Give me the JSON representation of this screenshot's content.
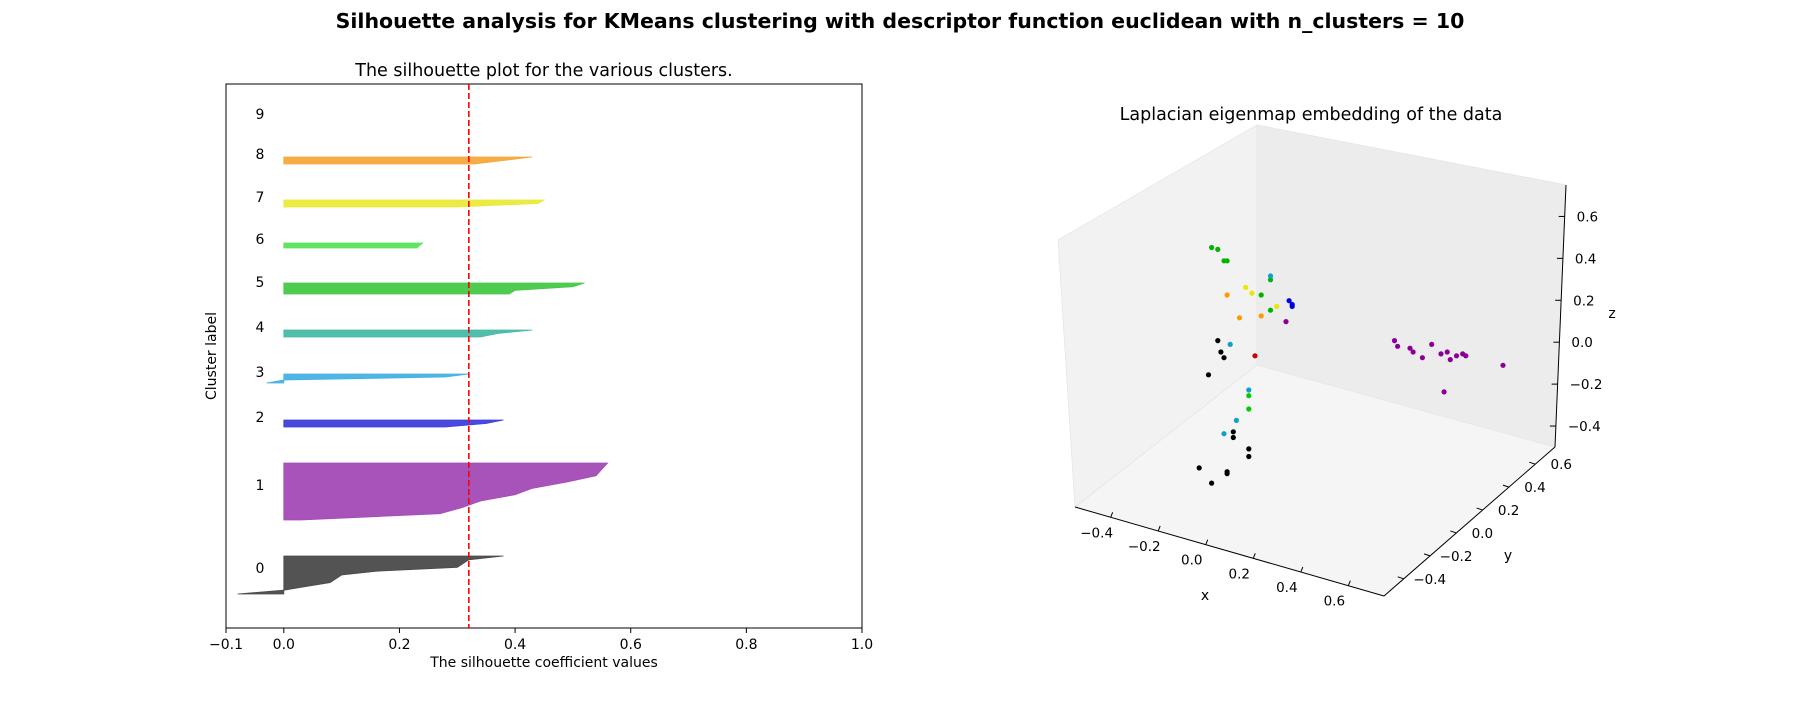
{
  "figure": {
    "suptitle": "Silhouette analysis for KMeans clustering with descriptor function euclidean with n_clusters = 10"
  },
  "chart_data": [
    {
      "type": "area",
      "title": "The silhouette plot for the various clusters.",
      "xlabel": "The silhouette coefficient values",
      "ylabel": "Cluster label",
      "xlim": [
        -0.1,
        1.0
      ],
      "xticks": [
        -0.1,
        0.0,
        0.2,
        0.4,
        0.6,
        0.8,
        1.0
      ],
      "xtick_labels": [
        "−0.1",
        "0.0",
        "0.2",
        "0.4",
        "0.6",
        "0.8",
        "1.0"
      ],
      "average_silhouette": 0.32,
      "grid": false,
      "clusters": [
        {
          "label": "0",
          "color": "#4a4a4a",
          "values": [
            0.38,
            0.32,
            0.31,
            0.3,
            0.16,
            0.1,
            0.09,
            0.08,
            0.04,
            0.0,
            -0.08
          ]
        },
        {
          "label": "1",
          "color": "#a34ab6",
          "values": [
            0.56,
            0.55,
            0.54,
            0.49,
            0.43,
            0.4,
            0.34,
            0.31,
            0.27,
            0.03
          ]
        },
        {
          "label": "2",
          "color": "#3f3fdc",
          "values": [
            0.38,
            0.35,
            0.28
          ]
        },
        {
          "label": "3",
          "color": "#44b1e3",
          "values": [
            0.32,
            0.28,
            0.0,
            -0.03
          ]
        },
        {
          "label": "4",
          "color": "#47bba6",
          "values": [
            0.43,
            0.37,
            0.34
          ]
        },
        {
          "label": "5",
          "color": "#46c846",
          "values": [
            0.52,
            0.5,
            0.4,
            0.39
          ]
        },
        {
          "label": "6",
          "color": "#58e458",
          "values": [
            0.24,
            0.23
          ]
        },
        {
          "label": "7",
          "color": "#eaea3a",
          "values": [
            0.45,
            0.44,
            0.3
          ]
        },
        {
          "label": "8",
          "color": "#f5a83c",
          "values": [
            0.43,
            0.38,
            0.33
          ]
        },
        {
          "label": "9",
          "color": "#cccccc",
          "values": []
        }
      ]
    },
    {
      "type": "scatter",
      "title": "Laplacian eigenmap embedding of the data",
      "xlabel": "x",
      "ylabel": "y",
      "zlabel": "z",
      "xtick_labels": [
        "−0.4",
        "−0.2",
        "0.0",
        "0.2",
        "0.4",
        "0.6"
      ],
      "ytick_labels": [
        "−0.4",
        "−0.2",
        "0.0",
        "0.2",
        "0.4",
        "0.6"
      ],
      "ztick_labels": [
        "−0.4",
        "−0.2",
        "0.0",
        "0.2",
        "0.4",
        "0.6"
      ],
      "grid": false,
      "points": [
        {
          "x": -0.14,
          "y": 0.3,
          "z": 0.55,
          "color": "#00b400"
        },
        {
          "x": -0.12,
          "y": 0.3,
          "z": 0.54,
          "color": "#00b400"
        },
        {
          "x": -0.1,
          "y": 0.3,
          "z": 0.48,
          "color": "#00b400"
        },
        {
          "x": -0.09,
          "y": 0.3,
          "z": 0.48,
          "color": "#00b400"
        },
        {
          "x": 0.05,
          "y": 0.3,
          "z": 0.38,
          "color": "#00b400"
        },
        {
          "x": 0.02,
          "y": 0.3,
          "z": 0.3,
          "color": "#00b400"
        },
        {
          "x": 0.05,
          "y": 0.3,
          "z": 0.22,
          "color": "#00b400"
        },
        {
          "x": 0.05,
          "y": 0.3,
          "z": 0.4,
          "color": "#10a0c8"
        },
        {
          "x": -0.03,
          "y": 0.3,
          "z": 0.34,
          "color": "#e8e800"
        },
        {
          "x": -0.01,
          "y": 0.3,
          "z": 0.31,
          "color": "#e8e800"
        },
        {
          "x": 0.07,
          "y": 0.3,
          "z": 0.24,
          "color": "#e8e800"
        },
        {
          "x": -0.09,
          "y": 0.3,
          "z": 0.3,
          "color": "#ff9900"
        },
        {
          "x": -0.05,
          "y": 0.3,
          "z": 0.18,
          "color": "#ff9900"
        },
        {
          "x": 0.02,
          "y": 0.3,
          "z": 0.19,
          "color": "#ff9900"
        },
        {
          "x": 0.11,
          "y": 0.3,
          "z": 0.27,
          "color": "#0000dd"
        },
        {
          "x": 0.12,
          "y": 0.3,
          "z": 0.24,
          "color": "#0000dd"
        },
        {
          "x": 0.12,
          "y": 0.3,
          "z": 0.25,
          "color": "#0000dd"
        },
        {
          "x": 0.1,
          "y": 0.3,
          "z": 0.16,
          "color": "#8a0096"
        },
        {
          "x": 0.45,
          "y": 0.3,
          "z": 0.06,
          "color": "#8a0096"
        },
        {
          "x": 0.46,
          "y": 0.3,
          "z": 0.03,
          "color": "#8a0096"
        },
        {
          "x": 0.5,
          "y": 0.3,
          "z": 0.02,
          "color": "#8a0096"
        },
        {
          "x": 0.51,
          "y": 0.3,
          "z": 0.0,
          "color": "#8a0096"
        },
        {
          "x": 0.54,
          "y": 0.3,
          "z": -0.03,
          "color": "#8a0096"
        },
        {
          "x": 0.57,
          "y": 0.3,
          "z": 0.04,
          "color": "#8a0096"
        },
        {
          "x": 0.6,
          "y": 0.3,
          "z": -0.01,
          "color": "#8a0096"
        },
        {
          "x": 0.62,
          "y": 0.3,
          "z": 0.0,
          "color": "#8a0096"
        },
        {
          "x": 0.63,
          "y": 0.3,
          "z": -0.04,
          "color": "#8a0096"
        },
        {
          "x": 0.65,
          "y": 0.3,
          "z": -0.02,
          "color": "#8a0096"
        },
        {
          "x": 0.67,
          "y": 0.3,
          "z": -0.01,
          "color": "#8a0096"
        },
        {
          "x": 0.68,
          "y": 0.3,
          "z": -0.02,
          "color": "#8a0096"
        },
        {
          "x": 0.61,
          "y": 0.3,
          "z": -0.21,
          "color": "#8a0096"
        },
        {
          "x": 0.8,
          "y": 0.3,
          "z": -0.07,
          "color": "#8a0096"
        },
        {
          "x": -0.12,
          "y": 0.3,
          "z": 0.06,
          "color": "#000000"
        },
        {
          "x": -0.11,
          "y": 0.3,
          "z": 0.0,
          "color": "#000000"
        },
        {
          "x": -0.1,
          "y": 0.3,
          "z": -0.03,
          "color": "#000000"
        },
        {
          "x": -0.15,
          "y": 0.3,
          "z": -0.12,
          "color": "#000000"
        },
        {
          "x": -0.08,
          "y": 0.3,
          "z": 0.04,
          "color": "#10a0c8"
        },
        {
          "x": 0.0,
          "y": 0.3,
          "z": -0.02,
          "color": "#cc0000"
        },
        {
          "x": -0.02,
          "y": 0.3,
          "z": -0.2,
          "color": "#10a0c8"
        },
        {
          "x": -0.02,
          "y": 0.3,
          "z": -0.23,
          "color": "#00cc00"
        },
        {
          "x": -0.02,
          "y": 0.3,
          "z": -0.3,
          "color": "#00cc00"
        },
        {
          "x": -0.06,
          "y": 0.3,
          "z": -0.36,
          "color": "#10a0c8"
        },
        {
          "x": -0.1,
          "y": 0.3,
          "z": -0.43,
          "color": "#10a0c8"
        },
        {
          "x": -0.07,
          "y": 0.3,
          "z": -0.42,
          "color": "#000000"
        },
        {
          "x": -0.07,
          "y": 0.3,
          "z": -0.45,
          "color": "#000000"
        },
        {
          "x": -0.02,
          "y": 0.3,
          "z": -0.51,
          "color": "#000000"
        },
        {
          "x": -0.02,
          "y": 0.3,
          "z": -0.55,
          "color": "#000000"
        },
        {
          "x": -0.18,
          "y": 0.3,
          "z": -0.61,
          "color": "#000000"
        },
        {
          "x": -0.09,
          "y": 0.3,
          "z": -0.63,
          "color": "#000000"
        },
        {
          "x": -0.09,
          "y": 0.3,
          "z": -0.64,
          "color": "#000000"
        },
        {
          "x": -0.14,
          "y": 0.3,
          "z": -0.69,
          "color": "#000000"
        }
      ]
    }
  ]
}
